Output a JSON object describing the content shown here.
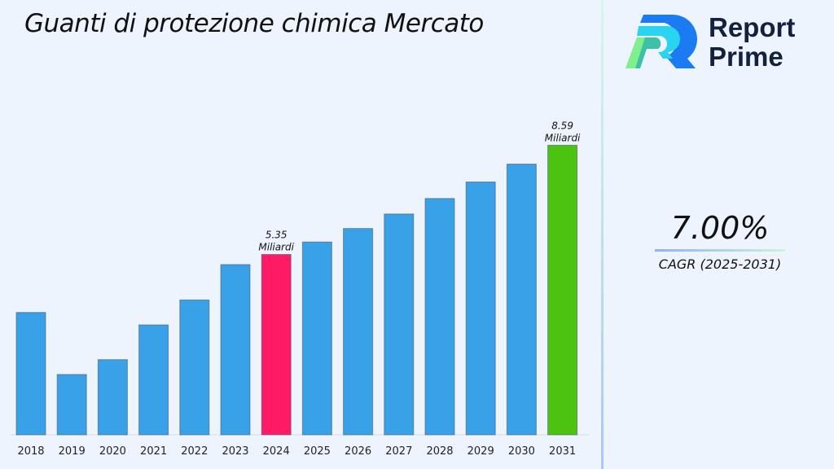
{
  "chart_data": {
    "type": "bar",
    "title": "Guanti di protezione chimica Mercato",
    "categories": [
      "2018",
      "2019",
      "2020",
      "2021",
      "2022",
      "2023",
      "2024",
      "2025",
      "2026",
      "2027",
      "2028",
      "2029",
      "2030",
      "2031"
    ],
    "values": [
      3.63,
      1.79,
      2.23,
      3.26,
      4.0,
      5.05,
      5.35,
      5.72,
      6.12,
      6.55,
      7.01,
      7.5,
      8.03,
      8.59
    ],
    "unit": "Miliardi",
    "ylim": [
      0,
      9
    ],
    "grid": false,
    "colors": {
      "default": "#38a1e8",
      "highlight_2024": "#ff1a66",
      "highlight_2031": "#4cc211"
    },
    "annotations": [
      {
        "category": "2024",
        "value_label": "5.35",
        "unit_label": "Miliardi"
      },
      {
        "category": "2031",
        "value_label": "8.59",
        "unit_label": "Miliardi"
      }
    ]
  },
  "brand": {
    "line1": "Report",
    "line2": "Prime",
    "icon": "report-prime-logo"
  },
  "cagr": {
    "value": "7.00%",
    "label": "CAGR (2025-2031)"
  }
}
